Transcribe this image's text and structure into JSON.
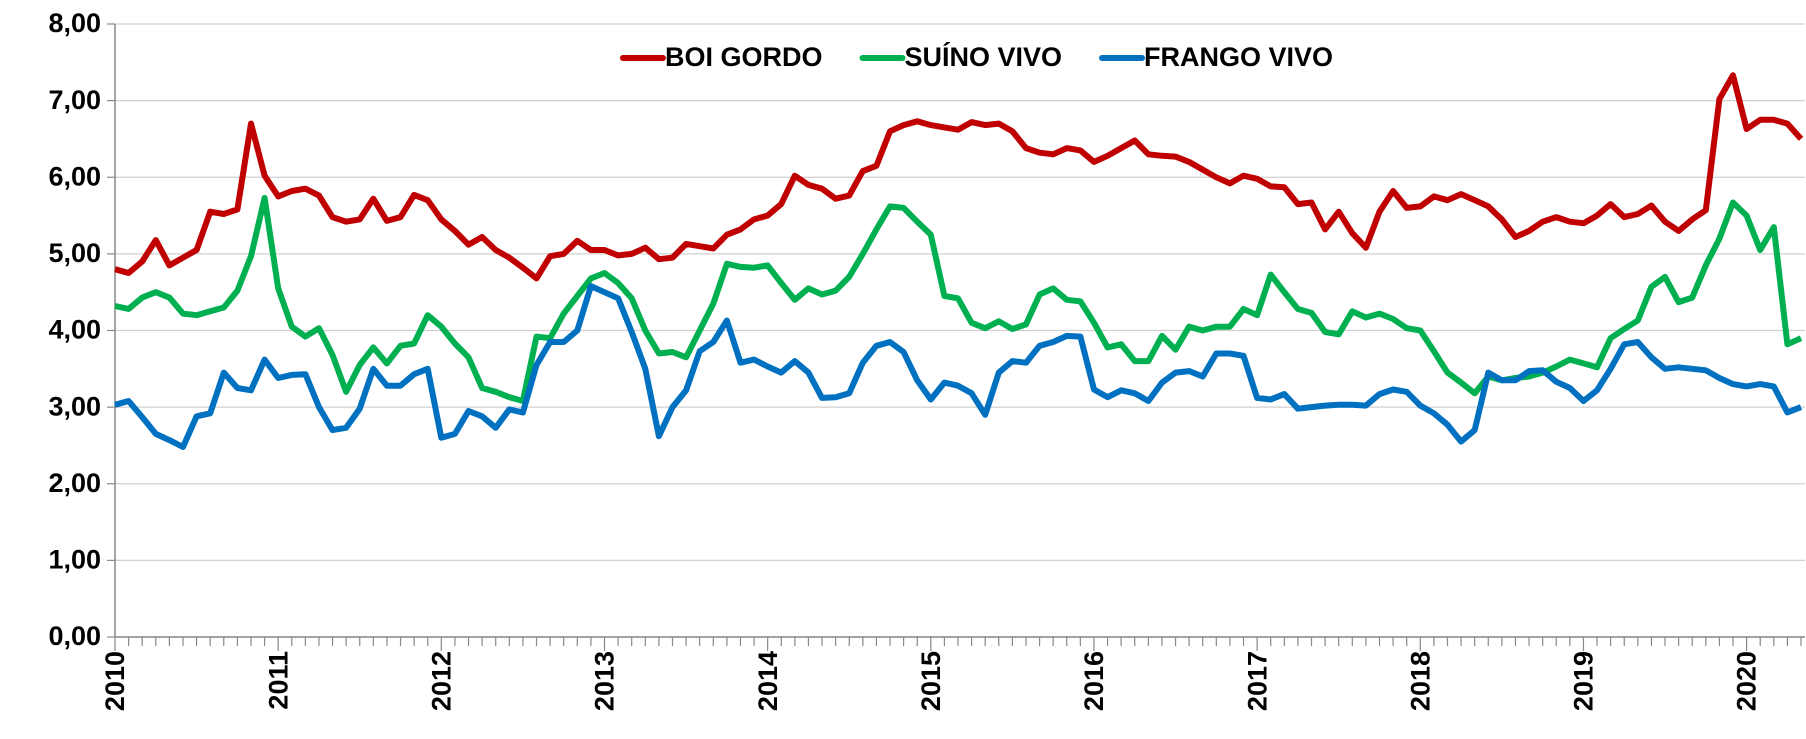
{
  "chart_data": {
    "type": "line",
    "categories": [
      "2010",
      null,
      null,
      null,
      null,
      null,
      null,
      null,
      null,
      null,
      null,
      null,
      "2011",
      null,
      null,
      null,
      null,
      null,
      null,
      null,
      null,
      null,
      null,
      null,
      "2012",
      null,
      null,
      null,
      null,
      null,
      null,
      null,
      null,
      null,
      null,
      null,
      "2013",
      null,
      null,
      null,
      null,
      null,
      null,
      null,
      null,
      null,
      null,
      null,
      "2014",
      null,
      null,
      null,
      null,
      null,
      null,
      null,
      null,
      null,
      null,
      null,
      "2015",
      null,
      null,
      null,
      null,
      null,
      null,
      null,
      null,
      null,
      null,
      null,
      "2016",
      null,
      null,
      null,
      null,
      null,
      null,
      null,
      null,
      null,
      null,
      null,
      "2017",
      null,
      null,
      null,
      null,
      null,
      null,
      null,
      null,
      null,
      null,
      null,
      "2018",
      null,
      null,
      null,
      null,
      null,
      null,
      null,
      null,
      null,
      null,
      null,
      "2019",
      null,
      null,
      null,
      null,
      null,
      null,
      null,
      null,
      null,
      null,
      null,
      "2020",
      null,
      null,
      null,
      null
    ],
    "series": [
      {
        "name": "BOI GORDO",
        "color": "#c00000",
        "values": [
          4.8,
          4.75,
          4.9,
          5.18,
          4.85,
          4.95,
          5.05,
          5.55,
          5.52,
          5.58,
          6.7,
          6.02,
          5.75,
          5.82,
          5.85,
          5.76,
          5.48,
          5.42,
          5.45,
          5.72,
          5.43,
          5.48,
          5.77,
          5.7,
          5.45,
          5.3,
          5.12,
          5.22,
          5.05,
          4.95,
          4.82,
          4.68,
          4.97,
          5.0,
          5.17,
          5.05,
          5.05,
          4.98,
          5.0,
          5.08,
          4.93,
          4.95,
          5.13,
          5.1,
          5.07,
          5.25,
          5.32,
          5.45,
          5.5,
          5.65,
          6.02,
          5.9,
          5.85,
          5.72,
          5.76,
          6.08,
          6.15,
          6.6,
          6.68,
          6.73,
          6.68,
          6.65,
          6.62,
          6.72,
          6.68,
          6.7,
          6.6,
          6.38,
          6.32,
          6.3,
          6.38,
          6.35,
          6.2,
          6.28,
          6.38,
          6.48,
          6.3,
          6.28,
          6.27,
          6.2,
          6.1,
          6.0,
          5.92,
          6.02,
          5.98,
          5.88,
          5.87,
          5.65,
          5.67,
          5.32,
          5.55,
          5.27,
          5.08,
          5.55,
          5.82,
          5.6,
          5.62,
          5.75,
          5.7,
          5.78,
          5.7,
          5.62,
          5.45,
          5.22,
          5.3,
          5.42,
          5.48,
          5.42,
          5.4,
          5.5,
          5.65,
          5.48,
          5.52,
          5.63,
          5.42,
          5.3,
          5.45,
          5.57,
          7.02,
          7.33,
          6.63,
          6.75,
          6.75,
          6.7,
          6.5
        ]
      },
      {
        "name": "SUÍNO VIVO",
        "color": "#00b050",
        "values": [
          4.32,
          4.28,
          4.43,
          4.5,
          4.43,
          4.22,
          4.2,
          4.25,
          4.3,
          4.52,
          4.97,
          5.73,
          4.55,
          4.05,
          3.92,
          4.03,
          3.68,
          3.2,
          3.55,
          3.78,
          3.57,
          3.8,
          3.83,
          4.2,
          4.05,
          3.83,
          3.65,
          3.25,
          3.2,
          3.13,
          3.08,
          3.92,
          3.9,
          4.22,
          4.45,
          4.68,
          4.75,
          4.62,
          4.42,
          4.0,
          3.7,
          3.72,
          3.65,
          4.0,
          4.35,
          4.87,
          4.83,
          4.82,
          4.85,
          4.62,
          4.4,
          4.55,
          4.47,
          4.52,
          4.7,
          5.0,
          5.32,
          5.62,
          5.6,
          5.42,
          5.25,
          4.45,
          4.42,
          4.1,
          4.03,
          4.12,
          4.02,
          4.08,
          4.47,
          4.55,
          4.4,
          4.38,
          4.1,
          3.78,
          3.82,
          3.6,
          3.6,
          3.93,
          3.75,
          4.05,
          4.0,
          4.05,
          4.05,
          4.28,
          4.2,
          4.73,
          4.5,
          4.28,
          4.23,
          3.98,
          3.95,
          4.25,
          4.17,
          4.22,
          4.15,
          4.03,
          4.0,
          3.73,
          3.45,
          3.32,
          3.18,
          3.4,
          3.35,
          3.38,
          3.4,
          3.45,
          3.53,
          3.62,
          3.57,
          3.52,
          3.9,
          4.02,
          4.13,
          4.57,
          4.7,
          4.37,
          4.43,
          4.85,
          5.2,
          5.67,
          5.5,
          5.05,
          5.35,
          3.82,
          3.9
        ]
      },
      {
        "name": "FRANGO VIVO",
        "color": "#0070c0",
        "values": [
          3.03,
          3.08,
          2.87,
          2.65,
          2.57,
          2.48,
          2.88,
          2.92,
          3.45,
          3.25,
          3.22,
          3.62,
          3.38,
          3.42,
          3.43,
          3.0,
          2.7,
          2.73,
          2.98,
          3.5,
          3.28,
          3.28,
          3.43,
          3.5,
          2.6,
          2.65,
          2.95,
          2.88,
          2.73,
          2.97,
          2.93,
          3.55,
          3.85,
          3.85,
          4.0,
          4.58,
          4.5,
          4.42,
          3.98,
          3.5,
          2.62,
          3.0,
          3.22,
          3.73,
          3.85,
          4.13,
          3.58,
          3.62,
          3.53,
          3.45,
          3.6,
          3.45,
          3.12,
          3.13,
          3.18,
          3.58,
          3.8,
          3.85,
          3.72,
          3.35,
          3.1,
          3.32,
          3.28,
          3.18,
          2.9,
          3.45,
          3.6,
          3.58,
          3.8,
          3.85,
          3.93,
          3.92,
          3.23,
          3.13,
          3.22,
          3.18,
          3.08,
          3.32,
          3.45,
          3.47,
          3.4,
          3.7,
          3.7,
          3.67,
          3.12,
          3.1,
          3.17,
          2.98,
          3.0,
          3.02,
          3.03,
          3.03,
          3.02,
          3.17,
          3.23,
          3.2,
          3.02,
          2.92,
          2.77,
          2.55,
          2.7,
          3.45,
          3.35,
          3.35,
          3.47,
          3.48,
          3.33,
          3.25,
          3.08,
          3.22,
          3.5,
          3.82,
          3.85,
          3.65,
          3.5,
          3.52,
          3.5,
          3.48,
          3.38,
          3.3,
          3.27,
          3.3,
          3.27,
          2.93,
          3.0
        ]
      }
    ],
    "ylim": [
      0,
      8
    ],
    "yticks": [
      {
        "value": 0,
        "label": "0,00"
      },
      {
        "value": 1,
        "label": "1,00"
      },
      {
        "value": 2,
        "label": "2,00"
      },
      {
        "value": 3,
        "label": "3,00"
      },
      {
        "value": 4,
        "label": "4,00"
      },
      {
        "value": 5,
        "label": "5,00"
      },
      {
        "value": 6,
        "label": "6,00"
      },
      {
        "value": 7,
        "label": "7,00"
      },
      {
        "value": 8,
        "label": "8,00"
      }
    ],
    "grid": true,
    "legend": "top"
  }
}
